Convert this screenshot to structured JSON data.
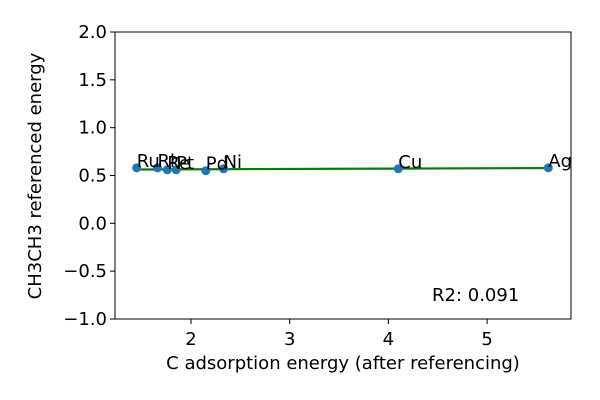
{
  "chart_data": {
    "type": "scatter",
    "title": "",
    "xlabel": "C adsorption energy (after referencing)",
    "ylabel": "CH3CH3 referenced energy",
    "xlim": [
      1.23,
      5.85
    ],
    "ylim": [
      -1.0,
      2.0
    ],
    "xticks": [
      2,
      3,
      4,
      5
    ],
    "yticks": [
      -1.0,
      -0.5,
      0.0,
      0.5,
      1.0,
      1.5,
      2.0
    ],
    "grid": false,
    "points": [
      {
        "label": "Ru",
        "x": 1.45,
        "y": 0.58
      },
      {
        "label": "Rh",
        "x": 1.66,
        "y": 0.58
      },
      {
        "label": "Re",
        "x": 1.76,
        "y": 0.56
      },
      {
        "label": "Pt",
        "x": 1.85,
        "y": 0.56
      },
      {
        "label": "Pd",
        "x": 2.15,
        "y": 0.55
      },
      {
        "label": "Ni",
        "x": 2.33,
        "y": 0.57
      },
      {
        "label": "Cu",
        "x": 4.1,
        "y": 0.57
      },
      {
        "label": "Ag",
        "x": 5.62,
        "y": 0.58
      }
    ],
    "fit_line": {
      "x": [
        1.45,
        5.62
      ],
      "y": [
        0.563,
        0.578
      ],
      "color": "#008000"
    },
    "annotation": "R2: 0.091",
    "point_color": "#1f77b4"
  }
}
